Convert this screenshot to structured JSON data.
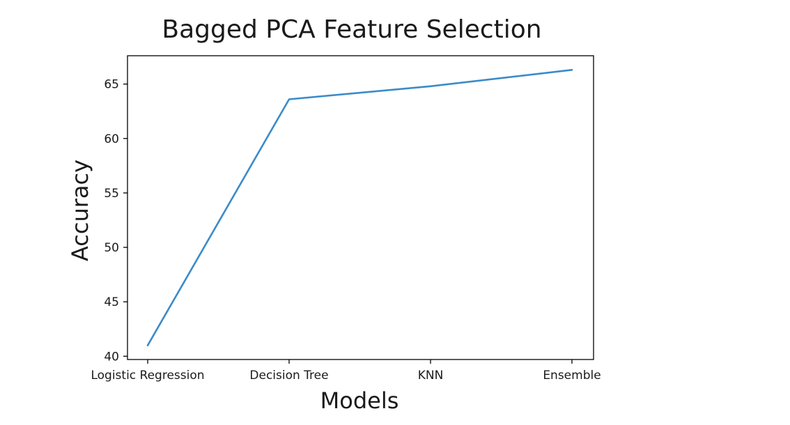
{
  "chart_data": {
    "type": "line",
    "title": "Bagged PCA Feature Selection",
    "xlabel": "Models",
    "ylabel": "Accuracy",
    "categories": [
      "Logistic Regression",
      "Decision Tree",
      "KNN",
      "Ensemble"
    ],
    "series": [
      {
        "values": [
          41.0,
          63.6,
          64.8,
          66.3
        ],
        "color": "#3b8bc9"
      }
    ],
    "ylim": [
      39.7,
      67.6
    ],
    "yticks": [
      40,
      45,
      50,
      55,
      60,
      65
    ],
    "grid": false
  }
}
